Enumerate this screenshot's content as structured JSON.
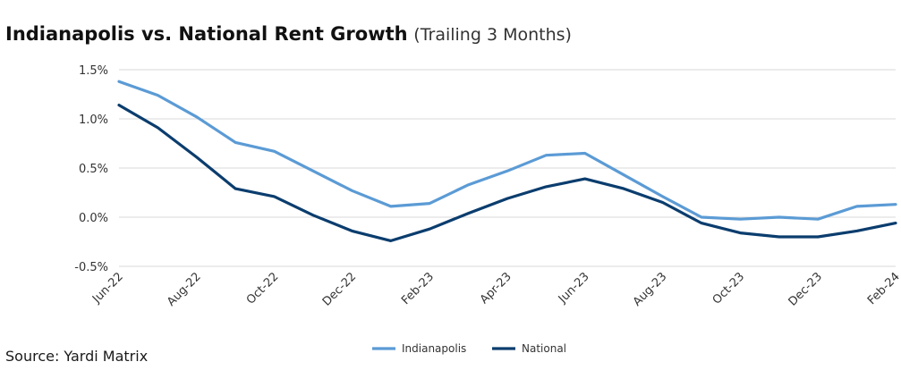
{
  "title_main": "Indianapolis vs. National Rent Growth",
  "title_sub": "(Trailing 3 Months)",
  "source": "Source: Yardi Matrix",
  "colors": {
    "indianapolis": "#5b9bd5",
    "national": "#0b3d6e",
    "grid": "#d9d9d9"
  },
  "chart_data": {
    "type": "line",
    "title": "Indianapolis vs. National Rent Growth (Trailing 3 Months)",
    "ylim": [
      -0.5,
      1.5
    ],
    "yticks": [
      "1.5%",
      "1.0%",
      "0.5%",
      "0.0%",
      "-0.5%"
    ],
    "ytick_values": [
      1.5,
      1.0,
      0.5,
      0.0,
      -0.5
    ],
    "x": [
      "Jun-22",
      "Jul-22",
      "Aug-22",
      "Sep-22",
      "Oct-22",
      "Nov-22",
      "Dec-22",
      "Jan-23",
      "Feb-23",
      "Mar-23",
      "Apr-23",
      "May-23",
      "Jun-23",
      "Jul-23",
      "Aug-23",
      "Sep-23",
      "Oct-23",
      "Nov-23",
      "Dec-23",
      "Jan-24",
      "Feb-24"
    ],
    "xtick_labels": [
      "Jun-22",
      "Aug-22",
      "Oct-22",
      "Dec-22",
      "Feb-23",
      "Apr-23",
      "Jun-23",
      "Aug-23",
      "Oct-23",
      "Dec-23",
      "Feb-24"
    ],
    "grid": true,
    "legend": "bottom",
    "series": [
      {
        "name": "Indianapolis",
        "values": [
          1.38,
          1.24,
          1.02,
          0.76,
          0.67,
          0.47,
          0.27,
          0.11,
          0.14,
          0.33,
          0.47,
          0.63,
          0.65,
          0.43,
          0.21,
          0.0,
          -0.02,
          0.0,
          -0.02,
          0.11,
          0.13
        ]
      },
      {
        "name": "National",
        "values": [
          1.14,
          0.91,
          0.61,
          0.29,
          0.21,
          0.02,
          -0.14,
          -0.24,
          -0.12,
          0.04,
          0.19,
          0.31,
          0.39,
          0.29,
          0.15,
          -0.06,
          -0.16,
          -0.2,
          -0.2,
          -0.14,
          -0.06
        ]
      }
    ]
  }
}
